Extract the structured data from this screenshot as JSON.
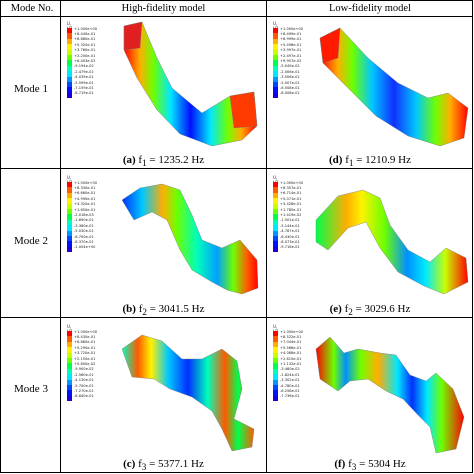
{
  "table": {
    "col_mode": "Mode No.",
    "col_high": "High-fidelity model",
    "col_low": "Low-fidelity model"
  },
  "rows": [
    {
      "label": "Mode 1",
      "high_caption": {
        "letter": "(a)",
        "text": " f",
        "sub": "1",
        "value": " = 1235.2 Hz"
      },
      "low_caption": {
        "letter": "(d)",
        "text": " f",
        "sub": "1",
        "value": " = 1210.9 Hz"
      },
      "high_legend": {
        "title": "U, U2",
        "ticks": [
          "+1.000e+00",
          "+8.440e-01",
          "+6.880e-01",
          "+5.320e-01",
          "+3.760e-01",
          "+2.200e-01",
          "+6.403e-02",
          "-9.194e-02",
          "-2.479e-01",
          "-4.039e-01",
          "-5.599e-01",
          "-7.159e-01",
          "-8.719e-01"
        ]
      },
      "low_legend": {
        "title": "U, U3",
        "ticks": [
          "+1.000e+00",
          "+8.499e-01",
          "+6.999e-01",
          "+5.498e-01",
          "+3.997e-01",
          "+2.497e-01",
          "+9.957e-02",
          "-5.049e-02",
          "-2.006e-01",
          "-3.506e-01",
          "-5.007e-01",
          "-6.508e-01",
          "-8.008e-01"
        ]
      }
    },
    {
      "label": "Mode 2",
      "high_caption": {
        "letter": "(b)",
        "text": " f",
        "sub": "2",
        "value": " = 3041.5 Hz"
      },
      "low_caption": {
        "letter": "(e)",
        "text": " f",
        "sub": "2",
        "value": " = 3029.6 Hz"
      },
      "high_legend": {
        "title": "U, U2",
        "ticks": [
          "+1.000e+00",
          "+8.330e-01",
          "+6.660e-01",
          "+4.990e-01",
          "+3.320e-01",
          "+1.650e-01",
          "-2.018e-03",
          "-1.690e-01",
          "-3.360e-01",
          "-5.030e-01",
          "-6.700e-01",
          "-8.370e-01",
          "-1.004e+00"
        ]
      },
      "low_legend": {
        "title": "U, U3",
        "ticks": [
          "+1.000e+00",
          "+8.357e-01",
          "+6.714e-01",
          "+5.071e-01",
          "+3.428e-01",
          "+1.785e-01",
          "+1.419e-02",
          "-1.501e-01",
          "-3.144e-01",
          "-4.787e-01",
          "-6.430e-01",
          "-8.073e-01",
          "-9.716e-01"
        ]
      }
    },
    {
      "label": "Mode 3",
      "high_caption": {
        "letter": "(c)",
        "text": " f",
        "sub": "3",
        "value": " = 5377.1 Hz"
      },
      "low_caption": {
        "letter": "(f)",
        "text": " f",
        "sub": "3",
        "value": " = 5304 Hz"
      },
      "high_legend": {
        "title": "U, U2",
        "ticks": [
          "+1.000e+00",
          "+8.430e-01",
          "+6.860e-01",
          "+5.290e-01",
          "+3.720e-01",
          "+2.150e-01",
          "+5.800e-02",
          "-9.900e-02",
          "-2.560e-01",
          "-4.130e-01",
          "-5.700e-01",
          "-7.270e-01",
          "-8.840e-01"
        ]
      },
      "low_legend": {
        "title": "U, U3",
        "ticks": [
          "+1.000e+00",
          "+8.522e-01",
          "+7.044e-01",
          "+5.566e-01",
          "+4.088e-01",
          "+2.610e-01",
          "+1.132e-01",
          "-3.460e-02",
          "-1.824e-01",
          "-3.302e-01",
          "-4.780e-01",
          "-6.258e-01",
          "-7.736e-01"
        ]
      }
    }
  ],
  "colors": {
    "scale": [
      "#ff0000",
      "#ff5a00",
      "#ffae00",
      "#fff200",
      "#c8ff00",
      "#6eff00",
      "#00ff4a",
      "#00ffb8",
      "#00e8ff",
      "#0098ff",
      "#0048ff",
      "#0010ff",
      "#1a00d8"
    ]
  }
}
